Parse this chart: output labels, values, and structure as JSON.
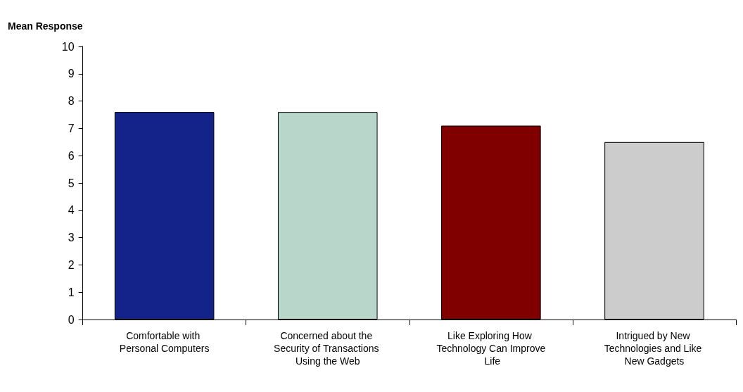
{
  "chart_data": {
    "type": "bar",
    "ylabel": "Mean Response",
    "categories": [
      "Comfortable with Personal Computers",
      "Concerned about the Security of Transactions Using the Web",
      "Like Exploring How Technology Can Improve Life",
      "Intrigued by New Technologies and Like New Gadgets"
    ],
    "values": [
      7.6,
      7.6,
      7.1,
      6.5
    ],
    "colors": [
      "#13238a",
      "#b9d6cb",
      "#800000",
      "#cccccc"
    ],
    "ylim": [
      0,
      10
    ],
    "yticks": [
      0,
      1,
      2,
      3,
      4,
      5,
      6,
      7,
      8,
      9,
      10
    ],
    "grid": false
  }
}
